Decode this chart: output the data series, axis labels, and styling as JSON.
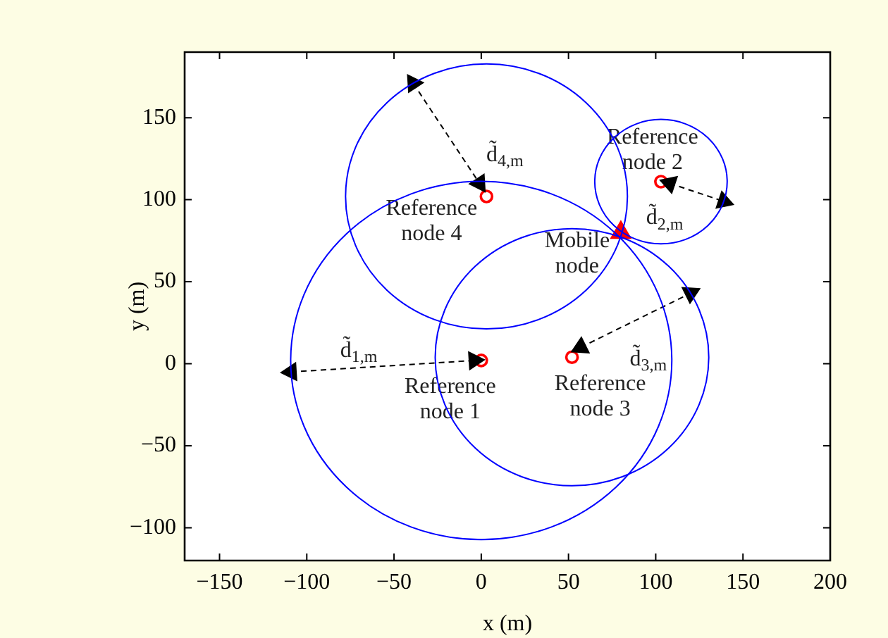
{
  "chart_data": {
    "type": "line",
    "xlabel": "x (m)",
    "ylabel": "y (m)",
    "xlim": [
      -170,
      200
    ],
    "ylim": [
      -120,
      190
    ],
    "xticks": [
      -150,
      -100,
      -50,
      0,
      50,
      100,
      150,
      200
    ],
    "yticks": [
      -100,
      -50,
      0,
      50,
      100,
      150
    ],
    "grid": false,
    "legend": false,
    "series": [
      {
        "color": "#000000",
        "marker": "triangle",
        "line_style": "dashed",
        "x": [
          -109,
          -4
        ],
        "values": [
          -5,
          2
        ]
      },
      {
        "color": "#000000",
        "marker": "triangle",
        "line_style": "dashed",
        "x": [
          108,
          139
        ],
        "values": [
          110,
          99
        ]
      },
      {
        "color": "#000000",
        "marker": "triangle",
        "line_style": "dashed",
        "x": [
          57,
          120
        ],
        "values": [
          10,
          43
        ]
      },
      {
        "color": "#000000",
        "marker": "triangle",
        "line_style": "dashed",
        "x": [
          -39,
          -1
        ],
        "values": [
          171,
          110
        ]
      },
      {
        "type": "scatter",
        "color": "#ff0000",
        "marker": "circle",
        "x": [
          0,
          103,
          52,
          3
        ],
        "values": [
          2,
          111,
          4,
          102
        ]
      },
      {
        "type": "scatter",
        "color": "#ff0000",
        "marker": "triangle",
        "x": [
          80
        ],
        "values": [
          80
        ]
      }
    ],
    "annotations": [
      {
        "text": "Reference\nnode 1",
        "x": 0,
        "y": 2
      },
      {
        "text": "Reference\nnode 2",
        "x": 103,
        "y": 111
      },
      {
        "text": "Reference\nnode 3",
        "x": 52,
        "y": 4
      },
      {
        "text": "Reference\nnode 4",
        "x": 3,
        "y": 102
      },
      {
        "text": "Mobile\nnode",
        "x": 80,
        "y": 80
      },
      {
        "text": "d̃$_{1,m}$",
        "x": -109,
        "y": -5
      },
      {
        "text": "d̃$_{2,m}$",
        "x": 139,
        "y": 99
      },
      {
        "text": "d̃$_{3,m}$",
        "x": 120,
        "y": 43
      },
      {
        "text": "d̃$_{4,m}$",
        "x": -1,
        "y": 110
      }
    ]
  }
}
